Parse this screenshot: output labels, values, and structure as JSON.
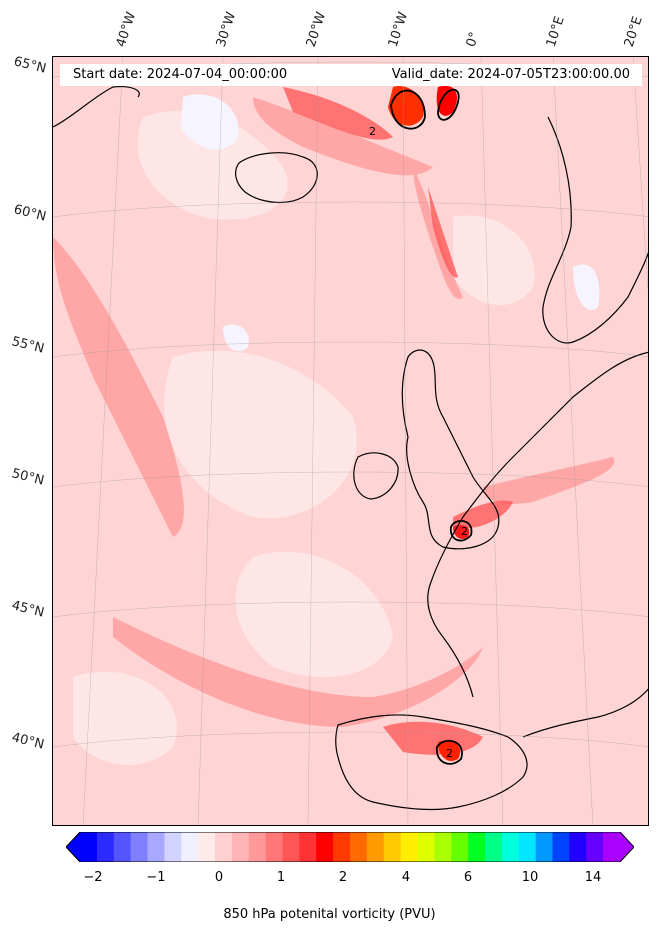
{
  "header": {
    "start_date": "Start date: 2024-07-04_00:00:00",
    "valid_date": "Valid_date: 2024-07-05T23:00:00.00"
  },
  "lat_labels": [
    "65°N",
    "60°N",
    "55°N",
    "50°N",
    "45°N",
    "40°N"
  ],
  "lon_labels": [
    "40°W",
    "30°W",
    "20°W",
    "10°W",
    "0°",
    "10°E",
    "20°E"
  ],
  "contour_labels": [
    "2",
    "2",
    "2"
  ],
  "colorbar": {
    "title": "850 hPa potenital vorticity (PVU)",
    "ticks": [
      "−2",
      "−1",
      "0",
      "1",
      "2",
      "4",
      "6",
      "10",
      "14"
    ],
    "colors": [
      "#0000ff",
      "#2b2bff",
      "#5555ff",
      "#7f7fff",
      "#a8a8ff",
      "#d3d3ff",
      "#f0f0ff",
      "#ffeaea",
      "#ffd0d0",
      "#ffb5b5",
      "#ff9999",
      "#ff7777",
      "#ff5555",
      "#ff3333",
      "#ff0000",
      "#ff3a00",
      "#ff6a00",
      "#ff9a00",
      "#ffc800",
      "#ffee00",
      "#ddff00",
      "#aaff00",
      "#66ff00",
      "#00ff22",
      "#00ff88",
      "#00ffdd",
      "#00e6ff",
      "#0099ff",
      "#0044ff",
      "#2200ff",
      "#6600ff",
      "#aa00ff"
    ]
  }
}
